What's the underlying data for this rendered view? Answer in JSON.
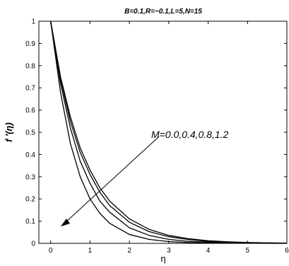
{
  "chart_data": {
    "type": "line",
    "title": "B=0.1,R=−0.1,L=5,N=15",
    "xlabel": "η",
    "ylabel": "f ′(η)",
    "xlim": [
      -0.3,
      6
    ],
    "ylim": [
      0,
      1
    ],
    "x_ticks": [
      0,
      1,
      2,
      3,
      4,
      5,
      6
    ],
    "y_ticks": [
      0,
      0.1,
      0.2,
      0.3,
      0.4,
      0.5,
      0.6,
      0.7,
      0.8,
      0.9,
      1
    ],
    "x_tick_labels": [
      "0",
      "1",
      "2",
      "3",
      "4",
      "5",
      "6"
    ],
    "y_tick_labels": [
      "0",
      "0.1",
      "0.2",
      "0.3",
      "0.4",
      "0.5",
      "0.6",
      "0.7",
      "0.8",
      "0.9",
      "1"
    ],
    "grid": false,
    "legend": "none",
    "annotation": {
      "text": "M=0.0,0.4,0.8,1.2",
      "arrow_direction": "down-left"
    },
    "series": [
      {
        "x": [
          0,
          0.25,
          0.5,
          0.75,
          1,
          1.25,
          1.5,
          2,
          2.5,
          3,
          3.5,
          4,
          4.5,
          5,
          5.5,
          6
        ],
        "y": [
          1,
          0.75,
          0.57,
          0.43,
          0.33,
          0.25,
          0.19,
          0.11,
          0.063,
          0.036,
          0.021,
          0.012,
          0.007,
          0.004,
          0.0023,
          0.0013
        ]
      },
      {
        "x": [
          0,
          0.25,
          0.5,
          0.75,
          1,
          1.25,
          1.5,
          2,
          2.5,
          3,
          3.5,
          4,
          4.5,
          5,
          5.5,
          6
        ],
        "y": [
          1,
          0.74,
          0.55,
          0.41,
          0.31,
          0.23,
          0.17,
          0.095,
          0.053,
          0.03,
          0.017,
          0.009,
          0.005,
          0.003,
          0.0017,
          0.001
        ]
      },
      {
        "x": [
          0,
          0.25,
          0.5,
          0.75,
          1,
          1.25,
          1.5,
          2,
          2.5,
          3,
          3.5,
          4,
          4.5,
          5,
          5.5,
          6
        ],
        "y": [
          1,
          0.72,
          0.52,
          0.37,
          0.27,
          0.19,
          0.14,
          0.07,
          0.036,
          0.018,
          0.009,
          0.005,
          0.0025,
          0.0013,
          0.0007,
          0.0003
        ]
      },
      {
        "x": [
          0,
          0.25,
          0.5,
          0.75,
          1,
          1.25,
          1.5,
          2,
          2.5,
          3,
          3.5,
          4,
          4.5,
          5,
          5.5,
          6
        ],
        "y": [
          1,
          0.68,
          0.45,
          0.3,
          0.2,
          0.135,
          0.09,
          0.04,
          0.018,
          0.008,
          0.0036,
          0.0016,
          0.0007,
          0.0003,
          0.0001,
          5e-05
        ]
      }
    ]
  }
}
